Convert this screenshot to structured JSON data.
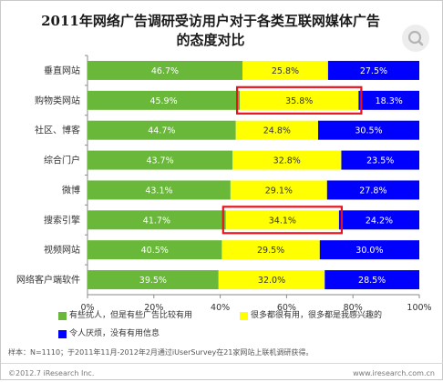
{
  "chart_data": {
    "type": "bar",
    "orientation": "horizontal",
    "stacked": true,
    "title_lines": [
      "2011年网络广告调研受访用户对于各类互联网媒体广告",
      "的态度对比"
    ],
    "categories": [
      "垂直网站",
      "购物类网站",
      "社区、博客",
      "综合门户",
      "微博",
      "搜索引擎",
      "视频网站",
      "网络客户端软件"
    ],
    "series": [
      {
        "name": "有些扰人，但是有些广告比较有用",
        "color": "#6ab83a",
        "values": [
          46.7,
          45.9,
          44.7,
          43.7,
          43.1,
          41.7,
          40.5,
          39.5
        ],
        "labels": [
          "46.7%",
          "45.9%",
          "44.7%",
          "43.7%",
          "43.1%",
          "41.7%",
          "40.5%",
          "39.5%"
        ]
      },
      {
        "name": "很多都很有用，很多都是我感兴趣的",
        "color": "#ffff00",
        "values": [
          25.8,
          35.8,
          24.8,
          32.8,
          29.1,
          34.1,
          29.5,
          32.0
        ],
        "labels": [
          "25.8%",
          "35.8%",
          "24.8%",
          "32.8%",
          "29.1%",
          "34.1%",
          "29.5%",
          "32.0%"
        ]
      },
      {
        "name": "令人厌烦，没有有用信息",
        "color": "#0000ff",
        "values": [
          27.5,
          18.3,
          30.5,
          23.5,
          27.8,
          24.2,
          30.0,
          28.5
        ],
        "labels": [
          "27.5%",
          "18.3%",
          "30.5%",
          "23.5%",
          "27.8%",
          "24.2%",
          "30.0%",
          "28.5%"
        ]
      }
    ],
    "x_ticks": [
      "0%",
      "20%",
      "40%",
      "60%",
      "80%",
      "100%"
    ],
    "xlim": [
      0,
      100
    ],
    "grid": false,
    "legend_position": "bottom",
    "highlights": [
      {
        "category": "购物类网站",
        "series": "很多都很有用，很多都是我感兴趣的",
        "color": "#e8141b"
      },
      {
        "category": "搜索引擎",
        "series": "很多都很有用，很多都是我感兴趣的",
        "color": "#e8141b"
      }
    ]
  },
  "note": "样本：N=1110；于2011年11月-2012年2月通过iUserSurvey在21家网站上联机调研获得。",
  "footer": {
    "copyright": "©2012.7 iResearch Inc.",
    "site": "www.iresearch.com.cn"
  },
  "icons": {
    "corner": "zoom-icon"
  }
}
